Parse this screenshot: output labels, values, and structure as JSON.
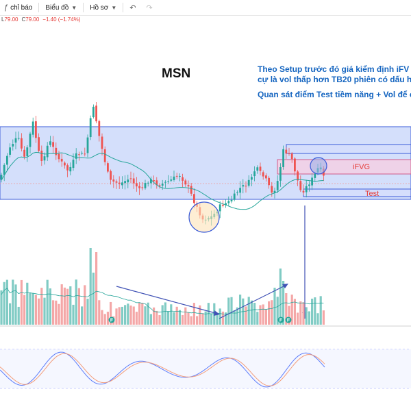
{
  "toolbar": {
    "items": [
      {
        "label": "chỉ báo",
        "icon": "indicators-icon"
      },
      {
        "label": "Biểu đồ",
        "icon": "chart-layout-icon"
      },
      {
        "label": "Hồ sơ",
        "icon": "profile-icon"
      }
    ],
    "undo_icon": "undo-icon",
    "redo_icon": "redo-icon"
  },
  "quote": {
    "low_label": "L",
    "low_value": "79.00",
    "close_label": "C",
    "close_value": "79.00",
    "change": "−1.40 (−1.74%)",
    "color": "#e53935"
  },
  "annotations": {
    "symbol": "MSN",
    "note_line1": "Theo Setup trước đó giá kiểm định iFV",
    "note_line2": "cự là vol thấp hơn TB20 phiên có dấu h",
    "note_line3": "Quan sát điểm Test tiềm năng + Vol để c",
    "ifvg_label": "iFVG",
    "test_label": "Test",
    "flag_text": "F"
  },
  "colors": {
    "up": "#26a69a",
    "down": "#ef5350",
    "zone_fill": "#c5d4fa",
    "zone_stroke": "#3a5bd9",
    "ifvg_fill": "#f3d0e4",
    "arrow": "#3f51b5",
    "ma": "#26a69a"
  }
}
